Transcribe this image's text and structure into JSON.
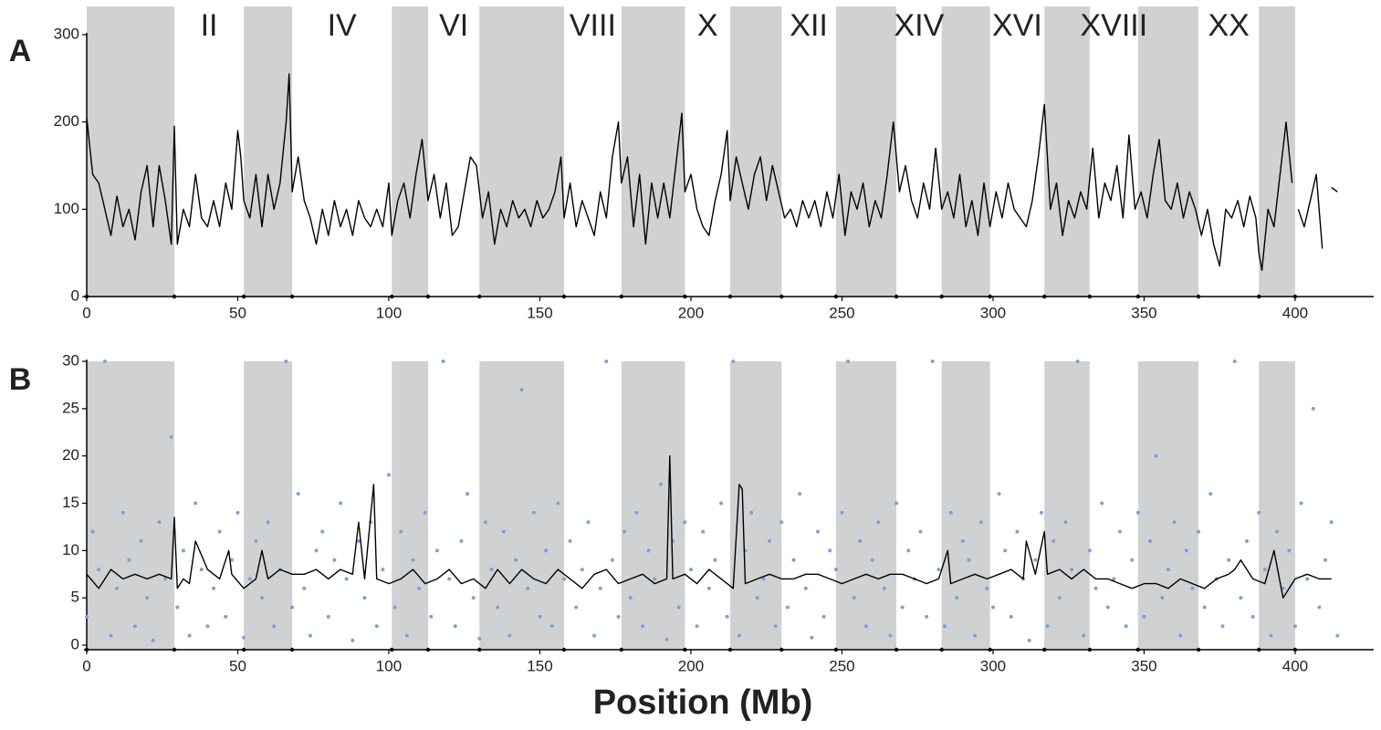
{
  "chart_data": [
    {
      "type": "line",
      "panel_label": "A",
      "shaded": [
        [
          0,
          29
        ],
        [
          52,
          68
        ],
        [
          101,
          113
        ],
        [
          130,
          158
        ],
        [
          177,
          198
        ],
        [
          213,
          230
        ],
        [
          248,
          268
        ],
        [
          283,
          299
        ],
        [
          317,
          332
        ],
        [
          348,
          368
        ],
        [
          388,
          400
        ]
      ],
      "chromosome_labels": [
        "II",
        "IV",
        "VI",
        "VIII",
        "X",
        "XII",
        "XIV",
        "XVI",
        "XVIII",
        "XX"
      ],
      "label_spans": [
        [
          29,
          52
        ],
        [
          68,
          101
        ],
        [
          113,
          130
        ],
        [
          158,
          177
        ],
        [
          198,
          213
        ],
        [
          230,
          248
        ],
        [
          268,
          283
        ],
        [
          299,
          317
        ],
        [
          332,
          348
        ],
        [
          368,
          388
        ]
      ],
      "shade_color": "#d0d1d3",
      "color": "#000000",
      "xlim": [
        0,
        426
      ],
      "xticks": [
        0,
        50,
        100,
        150,
        200,
        250,
        300,
        350,
        400
      ],
      "ylim": [
        0,
        300
      ],
      "yticks": [
        0,
        100,
        200,
        300
      ],
      "x": [
        0,
        2,
        4,
        6,
        8,
        10,
        12,
        14,
        16,
        18,
        20,
        22,
        24,
        26,
        28,
        29,
        30,
        32,
        34,
        36,
        38,
        40,
        42,
        44,
        46,
        48,
        50,
        51,
        52,
        54,
        56,
        58,
        60,
        62,
        64,
        66,
        67,
        68,
        70,
        72,
        74,
        76,
        78,
        80,
        82,
        84,
        86,
        88,
        90,
        92,
        94,
        96,
        98,
        100,
        101,
        103,
        105,
        107,
        109,
        111,
        113,
        115,
        117,
        119,
        121,
        123,
        125,
        127,
        129,
        131,
        133,
        135,
        137,
        139,
        141,
        143,
        145,
        147,
        149,
        151,
        153,
        155,
        157,
        158,
        160,
        162,
        164,
        166,
        168,
        170,
        172,
        174,
        176,
        177,
        179,
        181,
        183,
        185,
        187,
        189,
        191,
        193,
        195,
        197,
        198,
        200,
        202,
        204,
        206,
        208,
        210,
        212,
        213,
        215,
        217,
        219,
        221,
        223,
        225,
        227,
        229,
        231,
        233,
        235,
        237,
        239,
        241,
        243,
        245,
        247,
        249,
        251,
        253,
        255,
        257,
        259,
        261,
        263,
        265,
        267,
        269,
        271,
        273,
        275,
        277,
        279,
        281,
        283,
        285,
        287,
        289,
        291,
        293,
        295,
        297,
        299,
        301,
        303,
        305,
        307,
        309,
        311,
        313,
        315,
        317,
        319,
        321,
        323,
        325,
        327,
        329,
        331,
        333,
        335,
        337,
        339,
        341,
        343,
        345,
        347,
        349,
        351,
        353,
        355,
        357,
        359,
        361,
        363,
        365,
        367,
        369,
        371,
        373,
        375,
        377,
        379,
        381,
        383,
        385,
        387,
        388,
        389,
        391,
        393,
        395,
        397,
        399,
        400,
        401,
        403,
        405,
        407,
        409,
        410,
        412,
        414
      ],
      "values": [
        205,
        140,
        130,
        100,
        70,
        115,
        80,
        100,
        65,
        120,
        150,
        80,
        150,
        110,
        60,
        195,
        60,
        100,
        80,
        140,
        90,
        80,
        110,
        80,
        130,
        100,
        190,
        160,
        110,
        90,
        140,
        80,
        140,
        100,
        130,
        200,
        255,
        120,
        160,
        110,
        90,
        60,
        100,
        70,
        110,
        80,
        100,
        70,
        110,
        90,
        80,
        100,
        80,
        130,
        70,
        110,
        130,
        90,
        140,
        180,
        110,
        140,
        90,
        130,
        70,
        80,
        120,
        160,
        150,
        90,
        120,
        60,
        100,
        80,
        110,
        90,
        100,
        80,
        110,
        90,
        100,
        120,
        160,
        90,
        130,
        80,
        110,
        90,
        70,
        120,
        90,
        160,
        200,
        130,
        160,
        80,
        140,
        60,
        130,
        90,
        130,
        90,
        150,
        210,
        120,
        140,
        100,
        80,
        70,
        110,
        140,
        190,
        110,
        160,
        130,
        100,
        140,
        160,
        110,
        150,
        120,
        90,
        100,
        80,
        110,
        90,
        110,
        80,
        120,
        90,
        140,
        70,
        120,
        100,
        130,
        80,
        110,
        90,
        140,
        200,
        120,
        150,
        110,
        90,
        130,
        100,
        170,
        100,
        120,
        90,
        140,
        80,
        110,
        70,
        130,
        80,
        120,
        90,
        130,
        100,
        90,
        80,
        110,
        160,
        220,
        100,
        130,
        70,
        110,
        90,
        120,
        100,
        170,
        90,
        130,
        110,
        150,
        90,
        185,
        100,
        120,
        90,
        140,
        180,
        110,
        100,
        130,
        90,
        120,
        100,
        70,
        100,
        60,
        35,
        100,
        90,
        110,
        80,
        115,
        90,
        50,
        30,
        100,
        80,
        140,
        200,
        130,
        null,
        100,
        80,
        110,
        140,
        55,
        null,
        125,
        120
      ]
    },
    {
      "type": "scatter",
      "panel_label": "B",
      "xlabel": "Position (Mb)",
      "shaded": [
        [
          0,
          29
        ],
        [
          52,
          68
        ],
        [
          101,
          113
        ],
        [
          130,
          158
        ],
        [
          177,
          198
        ],
        [
          213,
          230
        ],
        [
          248,
          268
        ],
        [
          283,
          299
        ],
        [
          317,
          332
        ],
        [
          348,
          368
        ],
        [
          388,
          400
        ]
      ],
      "shade_color": "#d0d1d3",
      "color": "#78a3db",
      "line_color": "#000000",
      "xlim": [
        0,
        426
      ],
      "xticks": [
        0,
        50,
        100,
        150,
        200,
        250,
        300,
        350,
        400
      ],
      "ylim": [
        0,
        30
      ],
      "yticks": [
        0,
        5,
        10,
        15,
        20,
        25,
        30
      ],
      "x": [
        0,
        2,
        4,
        6,
        8,
        10,
        12,
        14,
        16,
        18,
        20,
        22,
        24,
        26,
        28,
        30,
        32,
        34,
        36,
        38,
        40,
        42,
        44,
        46,
        48,
        50,
        52,
        54,
        56,
        58,
        60,
        62,
        64,
        66,
        68,
        70,
        72,
        74,
        76,
        78,
        80,
        82,
        84,
        86,
        88,
        90,
        92,
        94,
        96,
        98,
        100,
        102,
        104,
        106,
        108,
        110,
        112,
        114,
        116,
        118,
        120,
        122,
        124,
        126,
        128,
        130,
        132,
        134,
        136,
        138,
        140,
        142,
        144,
        146,
        148,
        150,
        152,
        154,
        156,
        158,
        160,
        162,
        164,
        166,
        168,
        170,
        172,
        174,
        176,
        178,
        180,
        182,
        184,
        186,
        188,
        190,
        192,
        194,
        196,
        198,
        200,
        202,
        204,
        206,
        208,
        210,
        212,
        214,
        216,
        218,
        220,
        222,
        224,
        226,
        228,
        230,
        232,
        234,
        236,
        238,
        240,
        242,
        244,
        246,
        248,
        250,
        252,
        254,
        256,
        258,
        260,
        262,
        264,
        266,
        268,
        270,
        272,
        274,
        276,
        278,
        280,
        282,
        284,
        286,
        288,
        290,
        292,
        294,
        296,
        298,
        300,
        302,
        304,
        306,
        308,
        310,
        312,
        314,
        316,
        318,
        320,
        322,
        324,
        326,
        328,
        330,
        332,
        334,
        336,
        338,
        340,
        342,
        344,
        346,
        348,
        350,
        352,
        354,
        356,
        358,
        360,
        362,
        364,
        366,
        368,
        370,
        372,
        374,
        376,
        378,
        380,
        382,
        384,
        386,
        388,
        390,
        392,
        394,
        396,
        398,
        400,
        402,
        404,
        406,
        408,
        410,
        412,
        414
      ],
      "values": [
        3,
        12,
        8,
        30,
        1,
        6,
        14,
        9,
        2,
        11,
        5,
        0.5,
        13,
        7,
        22,
        4,
        10,
        1,
        15,
        8,
        2,
        6,
        12,
        3,
        9,
        14,
        0.8,
        7,
        11,
        5,
        13,
        2,
        8,
        30,
        4,
        16,
        6,
        1,
        10,
        12,
        3,
        9,
        15,
        7,
        0.5,
        11,
        5,
        13,
        2,
        8,
        18,
        4,
        12,
        1,
        9,
        6,
        14,
        3,
        10,
        30,
        7,
        2,
        11,
        16,
        5,
        0.7,
        13,
        8,
        4,
        12,
        1,
        9,
        27,
        6,
        14,
        3,
        10,
        2,
        15,
        7,
        11,
        4,
        8,
        13,
        1,
        6,
        30,
        9,
        3,
        12,
        5,
        14,
        2,
        10,
        7,
        17,
        0.6,
        11,
        4,
        13,
        8,
        2,
        12,
        6,
        9,
        15,
        3,
        30,
        1,
        10,
        14,
        5,
        7,
        11,
        2,
        13,
        4,
        9,
        16,
        6,
        0.8,
        12,
        3,
        10,
        8,
        14,
        30,
        5,
        11,
        2,
        9,
        13,
        6,
        1,
        15,
        4,
        10,
        7,
        12,
        3,
        30,
        8,
        2,
        14,
        5,
        11,
        9,
        1,
        13,
        6,
        4,
        16,
        10,
        3,
        12,
        7,
        0.5,
        9,
        14,
        2,
        11,
        5,
        13,
        8,
        30,
        1,
        10,
        6,
        15,
        4,
        7,
        12,
        2,
        9,
        14,
        3,
        11,
        20,
        5,
        8,
        13,
        1,
        10,
        6,
        12,
        4,
        16,
        7,
        2,
        9,
        30,
        5,
        11,
        3,
        14,
        8,
        1,
        12,
        6,
        10,
        2,
        15,
        7,
        25,
        4,
        9,
        13,
        1
      ],
      "line_x": [
        0,
        4,
        8,
        12,
        16,
        20,
        24,
        28,
        29,
        30,
        32,
        34,
        36,
        40,
        44,
        47,
        48,
        52,
        56,
        58,
        60,
        64,
        68,
        72,
        76,
        80,
        84,
        88,
        90,
        92,
        95,
        96,
        100,
        104,
        108,
        112,
        116,
        120,
        124,
        128,
        132,
        136,
        140,
        144,
        148,
        152,
        156,
        160,
        164,
        168,
        172,
        176,
        180,
        184,
        188,
        192,
        193,
        194,
        198,
        202,
        206,
        210,
        214,
        216,
        217,
        218,
        222,
        226,
        230,
        234,
        238,
        242,
        246,
        250,
        254,
        258,
        262,
        266,
        270,
        274,
        278,
        282,
        285,
        286,
        290,
        294,
        298,
        302,
        306,
        310,
        311,
        314,
        317,
        318,
        322,
        326,
        330,
        334,
        338,
        342,
        346,
        350,
        354,
        358,
        362,
        366,
        370,
        374,
        378,
        380,
        382,
        386,
        390,
        393,
        396,
        400,
        404,
        408,
        412
      ],
      "line_values": [
        7.5,
        6,
        8,
        7,
        7.5,
        7,
        7.5,
        7,
        13.5,
        6,
        7,
        6.5,
        11,
        8,
        7,
        10,
        7.5,
        6,
        7,
        10,
        7,
        8,
        7.5,
        7.5,
        8,
        7,
        8,
        7.5,
        13,
        7,
        17,
        7,
        6.5,
        7,
        8,
        6.5,
        7,
        8,
        6.5,
        7,
        6,
        8,
        6.5,
        8,
        7,
        6.5,
        8,
        7,
        6,
        7.5,
        8,
        6.5,
        7,
        7.5,
        6.5,
        7,
        20,
        7,
        7.5,
        6.5,
        8,
        7,
        6,
        17,
        16.5,
        6.5,
        7,
        7.5,
        7,
        7,
        7.5,
        7.5,
        7,
        6.5,
        7,
        7.5,
        7,
        7.5,
        7.5,
        7,
        6.5,
        7,
        10,
        6.5,
        7,
        7.5,
        7,
        7.5,
        8,
        7,
        11,
        7.5,
        12,
        7.5,
        8,
        7,
        8,
        7,
        7,
        6.5,
        6,
        6.5,
        6.5,
        6,
        7,
        6.5,
        6,
        7,
        7.5,
        8,
        9,
        7,
        6.5,
        10,
        5,
        7,
        7.5,
        7,
        7
      ]
    }
  ]
}
